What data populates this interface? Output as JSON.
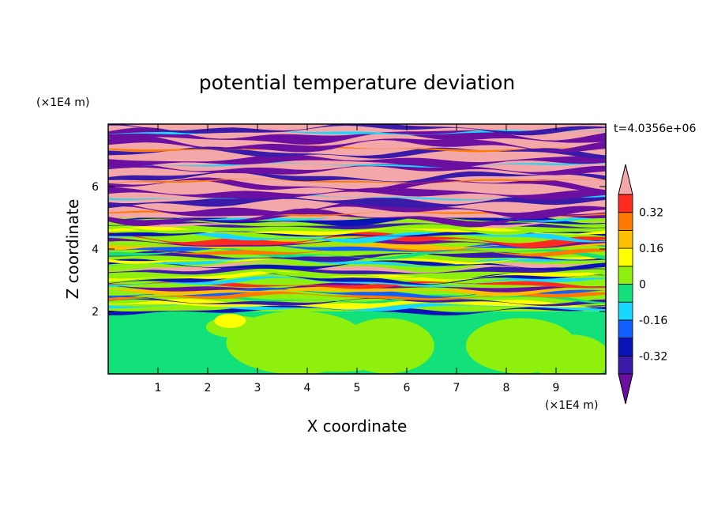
{
  "chart_data": {
    "type": "heatmap",
    "title": "potential temperature deviation",
    "xlabel": "X coordinate",
    "ylabel": "Z coordinate",
    "x_unit": "(×1E4 m)",
    "y_unit": "(×1E4 m)",
    "time_label": "t=4.0356e+06",
    "xlim": [
      0,
      10
    ],
    "ylim": [
      0,
      8
    ],
    "x_ticks": [
      1,
      2,
      3,
      4,
      5,
      6,
      7,
      8,
      9
    ],
    "x_tick_labels": [
      "1",
      "2",
      "3",
      "4",
      "5",
      "6",
      "7",
      "8",
      "9"
    ],
    "y_ticks": [
      2,
      4,
      6
    ],
    "y_tick_labels": [
      "2",
      "4",
      "6"
    ],
    "colorbar": {
      "levels": [
        -0.48,
        -0.4,
        -0.32,
        -0.24,
        -0.16,
        -0.08,
        0,
        0.08,
        0.16,
        0.24,
        0.32,
        0.4,
        0.48
      ],
      "tick_values": [
        -0.32,
        -0.16,
        0,
        0.16,
        0.32
      ],
      "tick_labels": [
        "-0.32",
        "-0.16",
        "0",
        "0.16",
        "0.32"
      ],
      "colors": [
        "#6a0fa0",
        "#3a1aa8",
        "#0a13b5",
        "#1060ff",
        "#18d8ff",
        "#12e07a",
        "#8ef00c",
        "#ffff00",
        "#ffbe00",
        "#ff7a00",
        "#ff2a20",
        "#f4a7a8"
      ],
      "extend": "both"
    }
  }
}
